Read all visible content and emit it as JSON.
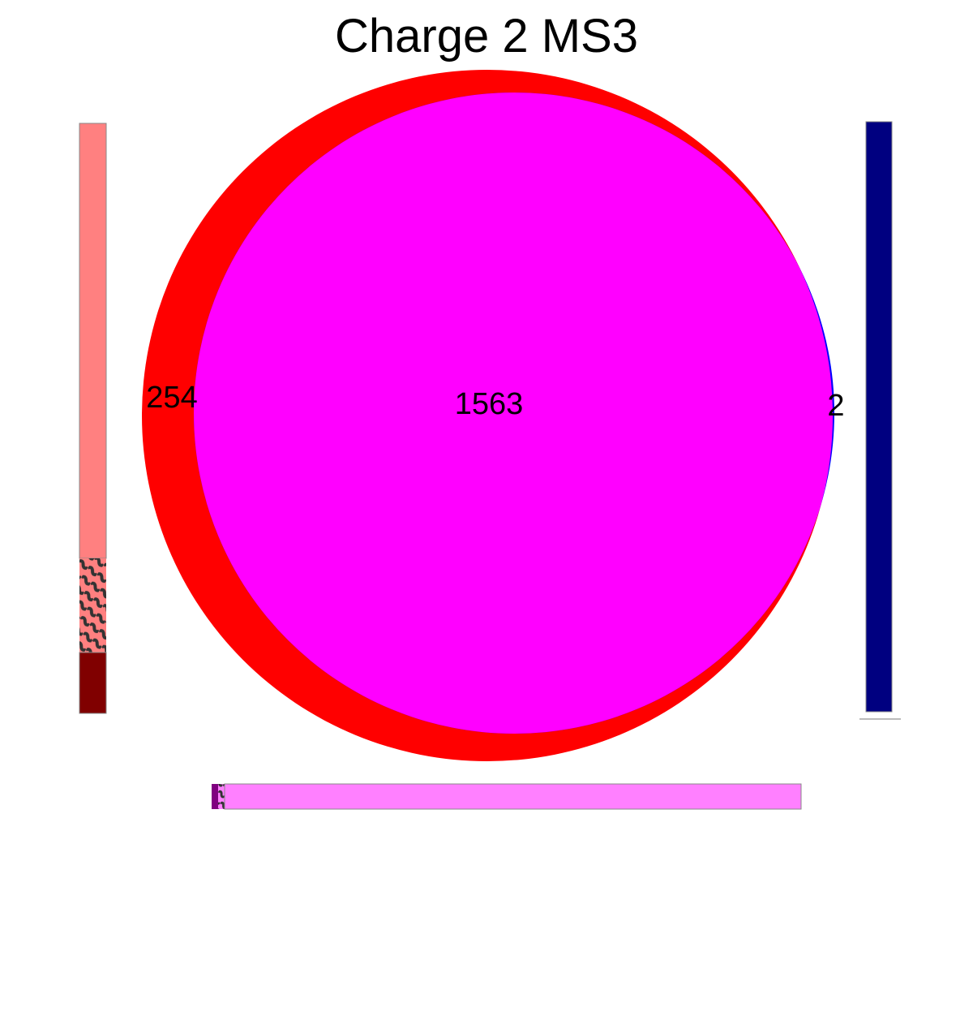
{
  "title": "Charge 2 MS3",
  "venn": {
    "regions": [
      {
        "id": "only_a",
        "label": "254",
        "value": 254,
        "color": "#ff0000"
      },
      {
        "id": "a_and_b",
        "label": "1563",
        "value": 1563,
        "color": "#ff00ff"
      },
      {
        "id": "only_b",
        "label": "2",
        "value": 2,
        "color": "#0000ff"
      }
    ]
  },
  "side_bars": {
    "left": {
      "segments": [
        {
          "id": "only_a",
          "value": 254,
          "color": "#ff8080"
        },
        {
          "id": "hatched",
          "color": "#808080"
        },
        {
          "id": "dark",
          "color": "#800000"
        }
      ]
    },
    "right": {
      "segments": [
        {
          "id": "b",
          "color": "#000080"
        }
      ]
    },
    "bottom": {
      "segments": [
        {
          "id": "dark",
          "color": "#800080"
        },
        {
          "id": "hatched",
          "color": "#808080"
        },
        {
          "id": "a_and_b",
          "color": "#ff80ff"
        }
      ]
    }
  }
}
